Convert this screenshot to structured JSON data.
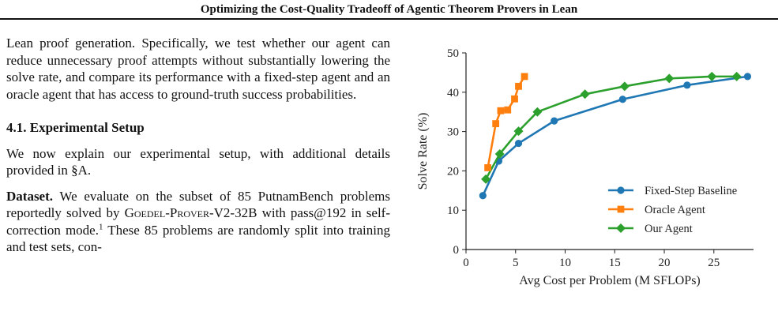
{
  "header": {
    "title": "Optimizing the Cost-Quality Tradeoff of Agentic Theorem Provers in Lean"
  },
  "body": {
    "intro_text": "Lean proof generation. Specifically, we test whether our agent can reduce unnecessary proof attempts without substantially lowering the solve rate, and compare its performance with a fixed-step agent and an oracle agent that has access to ground-truth success probabilities.",
    "section_heading": "4.1. Experimental Setup",
    "setup_text": "We now explain our experimental setup, with additional details provided in §A.",
    "dataset_label": "Dataset.",
    "dataset_text_1": "We evaluate on the subset of 85 PutnamBench problems reportedly solved by",
    "model_name": "Goedel-Prover-V2-32B",
    "dataset_text_2": "with pass@192 in self-correction mode.",
    "footnote_mark": "1",
    "dataset_text_3": "These 85 problems are randomly split into training and test sets, con-"
  },
  "chart_data": {
    "type": "line",
    "xlabel": "Avg Cost per Problem (M SFLOPs)",
    "ylabel": "Solve Rate (%)",
    "xlim": [
      0,
      29
    ],
    "ylim": [
      0,
      50
    ],
    "xticks": [
      0,
      5,
      10,
      15,
      20,
      25
    ],
    "yticks": [
      0,
      10,
      20,
      30,
      40,
      50
    ],
    "grid": false,
    "legend_position": "lower-right",
    "series": [
      {
        "name": "Fixed-Step Baseline",
        "color": "#1f77b4",
        "marker": "circle",
        "points": [
          [
            1.7,
            13.7
          ],
          [
            3.3,
            22.5
          ],
          [
            5.3,
            27.0
          ],
          [
            8.9,
            32.7
          ],
          [
            15.8,
            38.2
          ],
          [
            22.3,
            41.8
          ],
          [
            28.4,
            44.0
          ]
        ]
      },
      {
        "name": "Oracle Agent",
        "color": "#ff7f0e",
        "marker": "square",
        "points": [
          [
            2.2,
            20.8
          ],
          [
            3.0,
            32.0
          ],
          [
            3.5,
            35.3
          ],
          [
            4.2,
            35.5
          ],
          [
            4.9,
            38.3
          ],
          [
            5.3,
            41.5
          ],
          [
            5.9,
            44.0
          ]
        ]
      },
      {
        "name": "Our Agent",
        "color": "#2ca02c",
        "marker": "diamond",
        "points": [
          [
            2.0,
            17.9
          ],
          [
            3.4,
            24.3
          ],
          [
            5.3,
            30.1
          ],
          [
            7.2,
            35.0
          ],
          [
            12.0,
            39.5
          ],
          [
            16.0,
            41.5
          ],
          [
            20.5,
            43.5
          ],
          [
            24.8,
            44.0
          ],
          [
            27.3,
            44.0
          ]
        ]
      }
    ]
  }
}
